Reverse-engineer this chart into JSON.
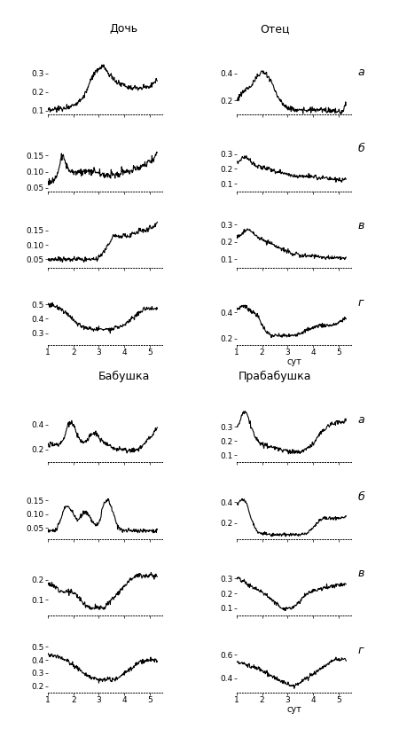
{
  "group_titles": [
    [
      "Дочь",
      "Отец"
    ],
    [
      "Бабушка",
      "Прабабушка"
    ]
  ],
  "row_labels": [
    "а",
    "б",
    "в",
    "г"
  ],
  "xlabel": "сут",
  "xlim": [
    1,
    5.5
  ],
  "xticks": [
    1,
    2,
    3,
    4,
    5
  ],
  "subplots": [
    {
      "group": 0,
      "col": 0,
      "row": 0,
      "ylim": [
        0.08,
        0.36
      ],
      "yticks": [
        0.1,
        0.2,
        0.3
      ],
      "noise": 0.007,
      "profile": [
        0.1,
        0.1,
        0.1,
        0.1,
        0.11,
        0.11,
        0.11,
        0.11,
        0.11,
        0.11,
        0.12,
        0.12,
        0.12,
        0.13,
        0.13,
        0.14,
        0.14,
        0.15,
        0.16,
        0.17,
        0.18,
        0.2,
        0.22,
        0.25,
        0.27,
        0.29,
        0.3,
        0.31,
        0.32,
        0.33,
        0.34,
        0.33,
        0.32,
        0.3,
        0.29,
        0.28,
        0.27,
        0.26,
        0.25,
        0.25,
        0.24,
        0.24,
        0.24,
        0.23,
        0.23,
        0.23,
        0.22,
        0.22,
        0.22,
        0.22,
        0.22,
        0.22,
        0.22,
        0.23,
        0.23,
        0.23,
        0.23,
        0.24,
        0.25,
        0.26,
        0.27
      ]
    },
    {
      "group": 0,
      "col": 1,
      "row": 0,
      "ylim": [
        0.1,
        0.48
      ],
      "yticks": [
        0.2,
        0.4
      ],
      "noise": 0.01,
      "profile": [
        0.2,
        0.22,
        0.24,
        0.26,
        0.27,
        0.28,
        0.29,
        0.3,
        0.31,
        0.33,
        0.35,
        0.37,
        0.38,
        0.4,
        0.41,
        0.4,
        0.39,
        0.38,
        0.36,
        0.34,
        0.31,
        0.27,
        0.24,
        0.22,
        0.2,
        0.18,
        0.17,
        0.16,
        0.15,
        0.14,
        0.14,
        0.14,
        0.13,
        0.13,
        0.13,
        0.13,
        0.13,
        0.13,
        0.13,
        0.13,
        0.13,
        0.13,
        0.13,
        0.13,
        0.13,
        0.13,
        0.13,
        0.13,
        0.13,
        0.13,
        0.13,
        0.13,
        0.12,
        0.12,
        0.12,
        0.12,
        0.12,
        0.12,
        0.12,
        0.15,
        0.18
      ]
    },
    {
      "group": 0,
      "col": 0,
      "row": 1,
      "ylim": [
        0.04,
        0.2
      ],
      "yticks": [
        0.05,
        0.1,
        0.15
      ],
      "noise": 0.005,
      "profile": [
        0.07,
        0.07,
        0.07,
        0.07,
        0.08,
        0.09,
        0.11,
        0.14,
        0.15,
        0.14,
        0.12,
        0.11,
        0.1,
        0.1,
        0.1,
        0.1,
        0.1,
        0.1,
        0.1,
        0.1,
        0.1,
        0.1,
        0.1,
        0.1,
        0.1,
        0.1,
        0.1,
        0.1,
        0.1,
        0.09,
        0.09,
        0.09,
        0.09,
        0.09,
        0.09,
        0.09,
        0.09,
        0.09,
        0.09,
        0.09,
        0.09,
        0.1,
        0.1,
        0.1,
        0.1,
        0.1,
        0.1,
        0.11,
        0.11,
        0.11,
        0.11,
        0.12,
        0.12,
        0.12,
        0.12,
        0.13,
        0.13,
        0.14,
        0.14,
        0.15,
        0.16
      ]
    },
    {
      "group": 0,
      "col": 1,
      "row": 1,
      "ylim": [
        0.05,
        0.4
      ],
      "yticks": [
        0.1,
        0.2,
        0.3
      ],
      "noise": 0.007,
      "profile": [
        0.24,
        0.25,
        0.26,
        0.27,
        0.28,
        0.28,
        0.27,
        0.26,
        0.25,
        0.24,
        0.23,
        0.22,
        0.22,
        0.21,
        0.21,
        0.21,
        0.2,
        0.2,
        0.2,
        0.19,
        0.19,
        0.19,
        0.18,
        0.18,
        0.18,
        0.17,
        0.17,
        0.17,
        0.16,
        0.16,
        0.16,
        0.15,
        0.15,
        0.15,
        0.15,
        0.15,
        0.15,
        0.15,
        0.15,
        0.15,
        0.15,
        0.15,
        0.15,
        0.15,
        0.14,
        0.14,
        0.14,
        0.14,
        0.14,
        0.14,
        0.13,
        0.13,
        0.13,
        0.13,
        0.13,
        0.13,
        0.12,
        0.12,
        0.12,
        0.12,
        0.13
      ]
    },
    {
      "group": 0,
      "col": 0,
      "row": 2,
      "ylim": [
        0.02,
        0.2
      ],
      "yticks": [
        0.05,
        0.1,
        0.15
      ],
      "noise": 0.004,
      "profile": [
        0.05,
        0.05,
        0.05,
        0.05,
        0.05,
        0.05,
        0.05,
        0.05,
        0.05,
        0.05,
        0.05,
        0.05,
        0.05,
        0.05,
        0.05,
        0.05,
        0.05,
        0.05,
        0.05,
        0.05,
        0.05,
        0.05,
        0.05,
        0.05,
        0.05,
        0.05,
        0.05,
        0.05,
        0.06,
        0.06,
        0.07,
        0.08,
        0.09,
        0.1,
        0.11,
        0.12,
        0.13,
        0.13,
        0.13,
        0.13,
        0.13,
        0.13,
        0.13,
        0.13,
        0.13,
        0.13,
        0.14,
        0.14,
        0.14,
        0.14,
        0.15,
        0.15,
        0.15,
        0.15,
        0.15,
        0.15,
        0.16,
        0.16,
        0.16,
        0.17,
        0.18
      ]
    },
    {
      "group": 0,
      "col": 1,
      "row": 2,
      "ylim": [
        0.05,
        0.35
      ],
      "yticks": [
        0.1,
        0.2,
        0.3
      ],
      "noise": 0.006,
      "profile": [
        0.22,
        0.23,
        0.24,
        0.25,
        0.26,
        0.27,
        0.27,
        0.27,
        0.26,
        0.25,
        0.24,
        0.23,
        0.22,
        0.22,
        0.21,
        0.21,
        0.2,
        0.2,
        0.2,
        0.19,
        0.18,
        0.18,
        0.17,
        0.17,
        0.16,
        0.16,
        0.15,
        0.15,
        0.15,
        0.14,
        0.14,
        0.13,
        0.13,
        0.13,
        0.12,
        0.12,
        0.12,
        0.12,
        0.12,
        0.12,
        0.12,
        0.12,
        0.12,
        0.12,
        0.12,
        0.12,
        0.11,
        0.11,
        0.11,
        0.11,
        0.11,
        0.11,
        0.11,
        0.11,
        0.11,
        0.11,
        0.11,
        0.11,
        0.11,
        0.11,
        0.11
      ]
    },
    {
      "group": 0,
      "col": 0,
      "row": 3,
      "ylim": [
        0.22,
        0.58
      ],
      "yticks": [
        0.3,
        0.4,
        0.5
      ],
      "noise": 0.008,
      "profile": [
        0.5,
        0.5,
        0.49,
        0.49,
        0.48,
        0.48,
        0.47,
        0.47,
        0.46,
        0.45,
        0.44,
        0.43,
        0.42,
        0.4,
        0.39,
        0.38,
        0.37,
        0.36,
        0.35,
        0.35,
        0.34,
        0.34,
        0.33,
        0.33,
        0.33,
        0.33,
        0.33,
        0.33,
        0.33,
        0.33,
        0.33,
        0.33,
        0.33,
        0.33,
        0.33,
        0.33,
        0.33,
        0.34,
        0.34,
        0.34,
        0.35,
        0.35,
        0.36,
        0.37,
        0.38,
        0.39,
        0.4,
        0.41,
        0.42,
        0.43,
        0.44,
        0.45,
        0.46,
        0.47,
        0.47,
        0.47,
        0.47,
        0.47,
        0.47,
        0.47,
        0.47
      ]
    },
    {
      "group": 0,
      "col": 1,
      "row": 3,
      "ylim": [
        0.15,
        0.55
      ],
      "yticks": [
        0.2,
        0.4
      ],
      "noise": 0.008,
      "profile": [
        0.42,
        0.43,
        0.44,
        0.45,
        0.45,
        0.44,
        0.43,
        0.42,
        0.41,
        0.4,
        0.39,
        0.38,
        0.36,
        0.33,
        0.3,
        0.28,
        0.26,
        0.24,
        0.23,
        0.22,
        0.22,
        0.22,
        0.22,
        0.22,
        0.22,
        0.22,
        0.22,
        0.22,
        0.22,
        0.22,
        0.22,
        0.22,
        0.23,
        0.23,
        0.24,
        0.24,
        0.25,
        0.25,
        0.26,
        0.27,
        0.27,
        0.28,
        0.28,
        0.29,
        0.29,
        0.3,
        0.3,
        0.3,
        0.3,
        0.3,
        0.3,
        0.3,
        0.3,
        0.3,
        0.31,
        0.31,
        0.32,
        0.33,
        0.34,
        0.35,
        0.36
      ]
    },
    {
      "group": 1,
      "col": 0,
      "row": 0,
      "ylim": [
        0.1,
        0.52
      ],
      "yticks": [
        0.2,
        0.4
      ],
      "noise": 0.009,
      "profile": [
        0.24,
        0.24,
        0.24,
        0.24,
        0.24,
        0.24,
        0.24,
        0.25,
        0.27,
        0.3,
        0.35,
        0.4,
        0.42,
        0.42,
        0.4,
        0.36,
        0.32,
        0.29,
        0.27,
        0.26,
        0.26,
        0.27,
        0.29,
        0.3,
        0.32,
        0.33,
        0.33,
        0.32,
        0.3,
        0.28,
        0.27,
        0.26,
        0.25,
        0.24,
        0.23,
        0.22,
        0.22,
        0.21,
        0.21,
        0.2,
        0.2,
        0.2,
        0.2,
        0.19,
        0.19,
        0.19,
        0.19,
        0.2,
        0.2,
        0.2,
        0.21,
        0.22,
        0.23,
        0.25,
        0.27,
        0.29,
        0.3,
        0.31,
        0.33,
        0.36,
        0.38
      ]
    },
    {
      "group": 1,
      "col": 1,
      "row": 0,
      "ylim": [
        0.05,
        0.42
      ],
      "yticks": [
        0.1,
        0.2,
        0.3
      ],
      "noise": 0.008,
      "profile": [
        0.3,
        0.32,
        0.35,
        0.38,
        0.4,
        0.4,
        0.38,
        0.34,
        0.3,
        0.26,
        0.23,
        0.21,
        0.2,
        0.19,
        0.18,
        0.17,
        0.17,
        0.16,
        0.16,
        0.16,
        0.15,
        0.15,
        0.15,
        0.14,
        0.14,
        0.13,
        0.13,
        0.13,
        0.13,
        0.12,
        0.12,
        0.12,
        0.12,
        0.12,
        0.12,
        0.12,
        0.13,
        0.13,
        0.14,
        0.15,
        0.16,
        0.17,
        0.18,
        0.2,
        0.22,
        0.24,
        0.26,
        0.27,
        0.28,
        0.29,
        0.3,
        0.31,
        0.32,
        0.32,
        0.33,
        0.33,
        0.33,
        0.33,
        0.33,
        0.34,
        0.35
      ]
    },
    {
      "group": 1,
      "col": 0,
      "row": 1,
      "ylim": [
        0.01,
        0.2
      ],
      "yticks": [
        0.05,
        0.1,
        0.15
      ],
      "noise": 0.004,
      "profile": [
        0.04,
        0.04,
        0.04,
        0.04,
        0.04,
        0.05,
        0.06,
        0.08,
        0.1,
        0.12,
        0.13,
        0.13,
        0.12,
        0.11,
        0.1,
        0.09,
        0.08,
        0.08,
        0.09,
        0.1,
        0.11,
        0.11,
        0.1,
        0.09,
        0.08,
        0.07,
        0.06,
        0.06,
        0.07,
        0.09,
        0.12,
        0.14,
        0.15,
        0.15,
        0.14,
        0.12,
        0.1,
        0.08,
        0.06,
        0.05,
        0.05,
        0.04,
        0.04,
        0.04,
        0.04,
        0.04,
        0.04,
        0.04,
        0.04,
        0.04,
        0.04,
        0.04,
        0.04,
        0.04,
        0.04,
        0.04,
        0.04,
        0.04,
        0.04,
        0.04,
        0.04
      ]
    },
    {
      "group": 1,
      "col": 1,
      "row": 1,
      "ylim": [
        0.05,
        0.55
      ],
      "yticks": [
        0.2,
        0.4
      ],
      "noise": 0.008,
      "profile": [
        0.38,
        0.4,
        0.42,
        0.43,
        0.42,
        0.4,
        0.36,
        0.3,
        0.24,
        0.2,
        0.16,
        0.13,
        0.11,
        0.1,
        0.1,
        0.1,
        0.1,
        0.09,
        0.09,
        0.09,
        0.09,
        0.09,
        0.09,
        0.09,
        0.09,
        0.09,
        0.09,
        0.09,
        0.09,
        0.09,
        0.09,
        0.09,
        0.09,
        0.09,
        0.09,
        0.09,
        0.1,
        0.1,
        0.1,
        0.11,
        0.12,
        0.14,
        0.16,
        0.18,
        0.2,
        0.22,
        0.24,
        0.24,
        0.25,
        0.25,
        0.25,
        0.25,
        0.25,
        0.25,
        0.25,
        0.25,
        0.25,
        0.25,
        0.25,
        0.26,
        0.27
      ]
    },
    {
      "group": 1,
      "col": 0,
      "row": 2,
      "ylim": [
        0.02,
        0.28
      ],
      "yticks": [
        0.1,
        0.2
      ],
      "noise": 0.006,
      "profile": [
        0.18,
        0.18,
        0.17,
        0.17,
        0.16,
        0.16,
        0.15,
        0.15,
        0.14,
        0.14,
        0.14,
        0.14,
        0.14,
        0.14,
        0.13,
        0.13,
        0.12,
        0.11,
        0.1,
        0.09,
        0.08,
        0.07,
        0.07,
        0.06,
        0.06,
        0.06,
        0.06,
        0.06,
        0.06,
        0.06,
        0.06,
        0.06,
        0.07,
        0.08,
        0.09,
        0.1,
        0.11,
        0.12,
        0.13,
        0.14,
        0.15,
        0.16,
        0.17,
        0.18,
        0.19,
        0.2,
        0.21,
        0.21,
        0.22,
        0.22,
        0.22,
        0.22,
        0.22,
        0.22,
        0.22,
        0.22,
        0.22,
        0.22,
        0.22,
        0.22,
        0.22
      ]
    },
    {
      "group": 1,
      "col": 1,
      "row": 2,
      "ylim": [
        0.05,
        0.4
      ],
      "yticks": [
        0.1,
        0.2,
        0.3
      ],
      "noise": 0.007,
      "profile": [
        0.3,
        0.3,
        0.29,
        0.28,
        0.28,
        0.27,
        0.26,
        0.25,
        0.25,
        0.24,
        0.23,
        0.23,
        0.22,
        0.21,
        0.21,
        0.2,
        0.19,
        0.18,
        0.17,
        0.16,
        0.15,
        0.14,
        0.13,
        0.12,
        0.11,
        0.1,
        0.1,
        0.1,
        0.1,
        0.1,
        0.1,
        0.11,
        0.12,
        0.13,
        0.14,
        0.15,
        0.17,
        0.18,
        0.19,
        0.2,
        0.21,
        0.21,
        0.22,
        0.22,
        0.22,
        0.23,
        0.23,
        0.23,
        0.24,
        0.24,
        0.24,
        0.25,
        0.25,
        0.25,
        0.25,
        0.26,
        0.26,
        0.26,
        0.26,
        0.26,
        0.27
      ]
    },
    {
      "group": 1,
      "col": 0,
      "row": 3,
      "ylim": [
        0.15,
        0.55
      ],
      "yticks": [
        0.2,
        0.3,
        0.4,
        0.5
      ],
      "noise": 0.008,
      "profile": [
        0.44,
        0.44,
        0.44,
        0.43,
        0.43,
        0.43,
        0.42,
        0.42,
        0.41,
        0.41,
        0.4,
        0.39,
        0.38,
        0.37,
        0.36,
        0.35,
        0.34,
        0.33,
        0.32,
        0.31,
        0.3,
        0.29,
        0.28,
        0.27,
        0.27,
        0.26,
        0.26,
        0.26,
        0.25,
        0.25,
        0.25,
        0.25,
        0.25,
        0.25,
        0.25,
        0.25,
        0.25,
        0.25,
        0.26,
        0.27,
        0.28,
        0.29,
        0.3,
        0.31,
        0.32,
        0.33,
        0.34,
        0.35,
        0.36,
        0.37,
        0.38,
        0.39,
        0.4,
        0.4,
        0.4,
        0.4,
        0.4,
        0.4,
        0.4,
        0.4,
        0.4
      ]
    },
    {
      "group": 1,
      "col": 1,
      "row": 3,
      "ylim": [
        0.28,
        0.72
      ],
      "yticks": [
        0.4,
        0.6
      ],
      "noise": 0.009,
      "profile": [
        0.54,
        0.54,
        0.53,
        0.53,
        0.52,
        0.52,
        0.51,
        0.51,
        0.5,
        0.5,
        0.49,
        0.48,
        0.48,
        0.47,
        0.46,
        0.46,
        0.45,
        0.44,
        0.43,
        0.42,
        0.41,
        0.4,
        0.4,
        0.39,
        0.38,
        0.37,
        0.36,
        0.35,
        0.35,
        0.34,
        0.34,
        0.34,
        0.34,
        0.35,
        0.36,
        0.37,
        0.38,
        0.39,
        0.4,
        0.41,
        0.42,
        0.43,
        0.44,
        0.45,
        0.46,
        0.47,
        0.48,
        0.49,
        0.5,
        0.51,
        0.52,
        0.53,
        0.54,
        0.55,
        0.56,
        0.56,
        0.56,
        0.56,
        0.56,
        0.56,
        0.56
      ]
    }
  ],
  "background_color": "#ffffff",
  "line_color": "#000000",
  "linewidth": 0.8
}
